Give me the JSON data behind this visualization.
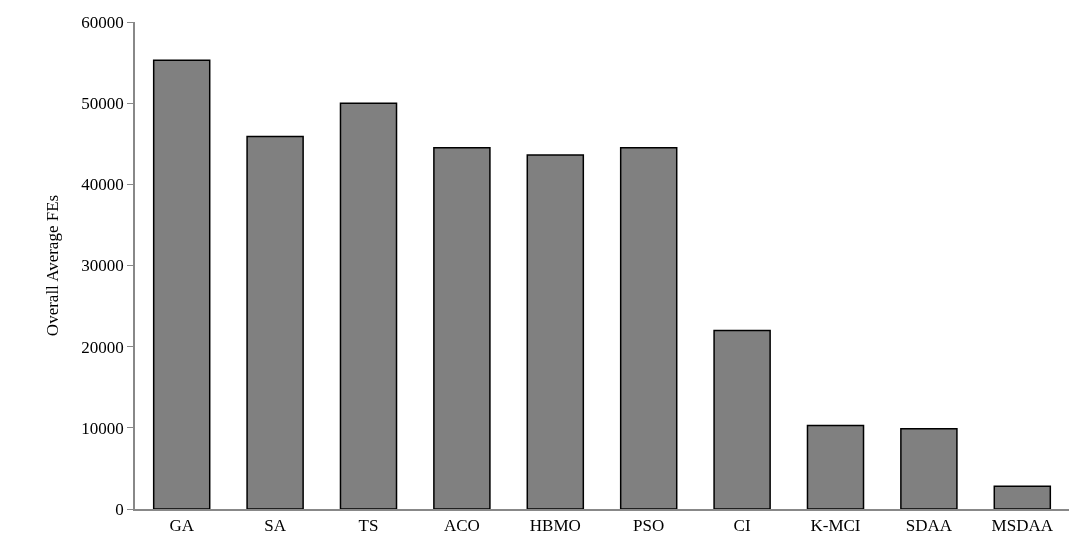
{
  "chart_data": {
    "type": "bar",
    "ylabel": "Overall Average FEs",
    "categories": [
      "GA",
      "SA",
      "TS",
      "ACO",
      "HBMO",
      "PSO",
      "CI",
      "K-MCI",
      "SDAA",
      "MSDAA"
    ],
    "values": [
      55300,
      45900,
      50000,
      44500,
      43600,
      44500,
      22000,
      10300,
      9900,
      2800
    ],
    "color": "#808080",
    "ylim": [
      0,
      60000
    ],
    "yticks": [
      0,
      10000,
      20000,
      30000,
      40000,
      50000,
      60000
    ]
  }
}
